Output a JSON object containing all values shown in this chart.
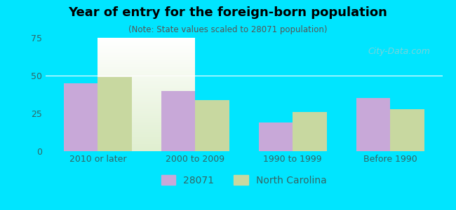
{
  "title": "Year of entry for the foreign-born population",
  "subtitle": "(Note: State values scaled to 28071 population)",
  "categories": [
    "2010 or later",
    "2000 to 2009",
    "1990 to 1999",
    "Before 1990"
  ],
  "values_28071": [
    45,
    40,
    19,
    35
  ],
  "values_nc": [
    49,
    34,
    26,
    28
  ],
  "bar_color_28071": "#c8a8d8",
  "bar_color_nc": "#c8d8a0",
  "background_color": "#00e5ff",
  "plot_bg_top": "#e8f5e0",
  "plot_bg_bottom": "#ffffff",
  "ylim": [
    0,
    75
  ],
  "yticks": [
    0,
    25,
    50,
    75
  ],
  "legend_labels": [
    "28071",
    "North Carolina"
  ],
  "bar_width": 0.35,
  "watermark": "City-Data.com"
}
